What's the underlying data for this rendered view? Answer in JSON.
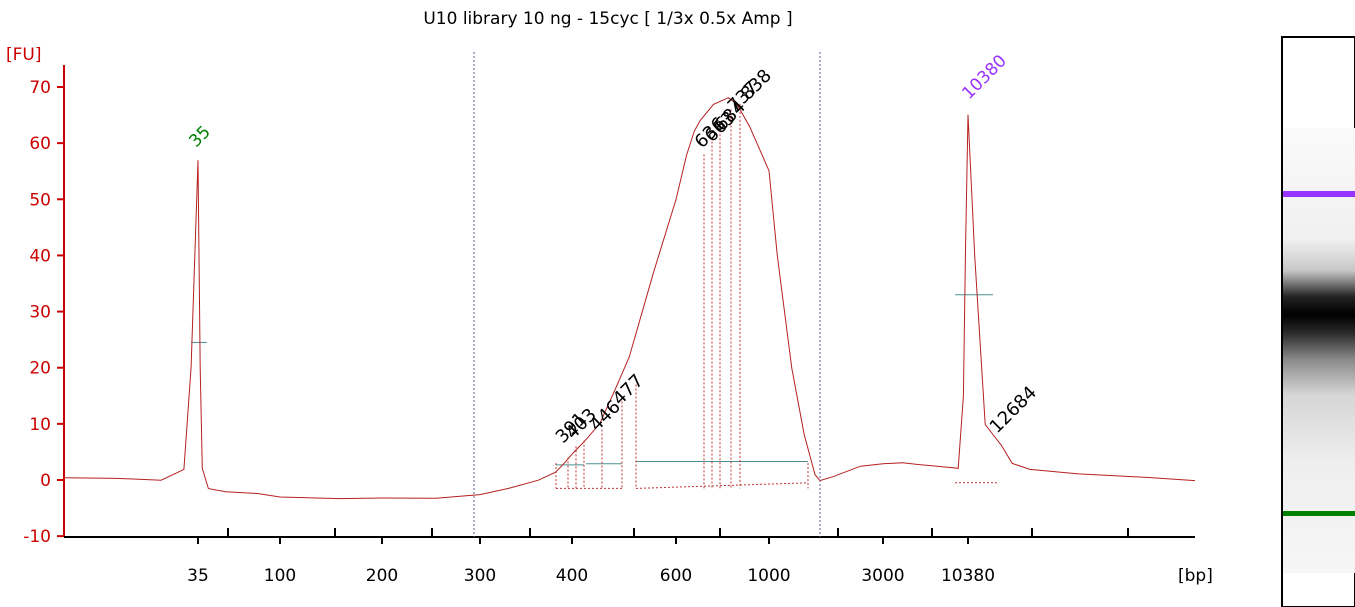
{
  "chart_data": {
    "type": "line",
    "title": "U10 library 10 ng - 15cyc  [ 1/3x 0.5x Amp ]",
    "ylabel": "[FU]",
    "xlabel": "[bp]",
    "ylim": [
      -10,
      70
    ],
    "y_ticks": [
      -10,
      0,
      10,
      20,
      30,
      40,
      50,
      60,
      70
    ],
    "x_ticks": [
      "35",
      "100",
      "200",
      "300",
      "400",
      "600",
      "1000",
      "3000",
      "10380"
    ],
    "grid": false,
    "colors": {
      "axis": "#cc0000",
      "trace": "#b52020",
      "lower_marker": "#008000",
      "upper_marker": "#9933ff",
      "baseline": "#4f8f8f",
      "label": "#000000"
    },
    "lower_marker": {
      "label": "35",
      "size_bp": 35,
      "peak_fu": 57
    },
    "upper_marker": {
      "label": "10380",
      "size_bp": 10380,
      "peak_fu": 65
    },
    "peak_labels": [
      "391",
      "403",
      "446",
      "477",
      "636",
      "663",
      "684",
      "737",
      "838",
      "12684"
    ],
    "trace": {
      "x_bp": [
        20,
        25,
        30,
        33,
        34,
        35,
        36,
        37,
        40,
        50,
        75,
        100,
        150,
        200,
        250,
        300,
        330,
        360,
        380,
        391,
        403,
        420,
        446,
        477,
        500,
        550,
        600,
        636,
        663,
        684,
        737,
        800,
        838,
        900,
        1000,
        1100,
        1300,
        1500,
        1700,
        1800,
        2000,
        2500,
        3000,
        4000,
        5000,
        7000,
        9000,
        9700,
        10000,
        10380,
        10800,
        11500,
        12684,
        13500,
        15000,
        20000,
        30000,
        40000
      ],
      "fu": [
        0.5,
        0.2,
        0.0,
        2.0,
        20.0,
        57.0,
        20.0,
        2.0,
        -1.5,
        -2.0,
        -2.5,
        -3.0,
        -3.2,
        -3.3,
        -3.2,
        -2.5,
        -1.5,
        0.0,
        1.5,
        3.0,
        5.0,
        7.0,
        10.0,
        17.0,
        22.0,
        37.0,
        50.0,
        58.0,
        62.0,
        64.0,
        67.0,
        68.0,
        67.0,
        63.0,
        55.0,
        40.0,
        20.0,
        8.0,
        1.0,
        0.0,
        0.5,
        2.5,
        3.0,
        3.0,
        2.8,
        2.5,
        2.0,
        15.0,
        40.0,
        65.0,
        40.0,
        10.0,
        6.0,
        3.0,
        2.0,
        1.0,
        0.5,
        0.0
      ]
    }
  }
}
